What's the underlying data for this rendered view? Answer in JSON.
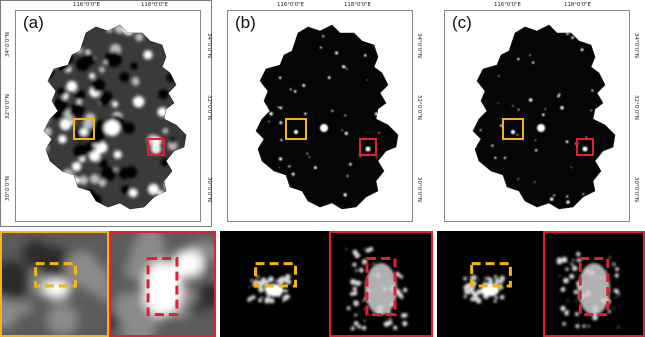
{
  "panels": [
    {
      "label": "(a)",
      "variant": "coarse"
    },
    {
      "label": "(b)",
      "variant": "fine"
    },
    {
      "label": "(c)",
      "variant": "fine"
    }
  ],
  "axes": {
    "lon_ticks": [
      "116°0'0\"E",
      "118°0'0\"E"
    ],
    "lat_ticks": [
      "34°0'0\"N",
      "32°0'0\"N",
      "30°0'0\"N"
    ]
  },
  "colors": {
    "yellow_box": "#f2b418",
    "red_box": "#e0202e",
    "background": "#000000",
    "land_coarse": "#3a3a3a",
    "light": "#ffffff"
  },
  "zoom_panels": [
    {
      "source": "(a)",
      "region": "yellow",
      "box_style": "dashed"
    },
    {
      "source": "(a)",
      "region": "red",
      "box_style": "dashed"
    },
    {
      "source": "(b)",
      "region": "yellow",
      "box_style": "dashed"
    },
    {
      "source": "(b)",
      "region": "red",
      "box_style": "dashed"
    },
    {
      "source": "(c)",
      "region": "yellow",
      "box_style": "dashed"
    },
    {
      "source": "(c)",
      "region": "red",
      "box_style": "dashed"
    }
  ]
}
